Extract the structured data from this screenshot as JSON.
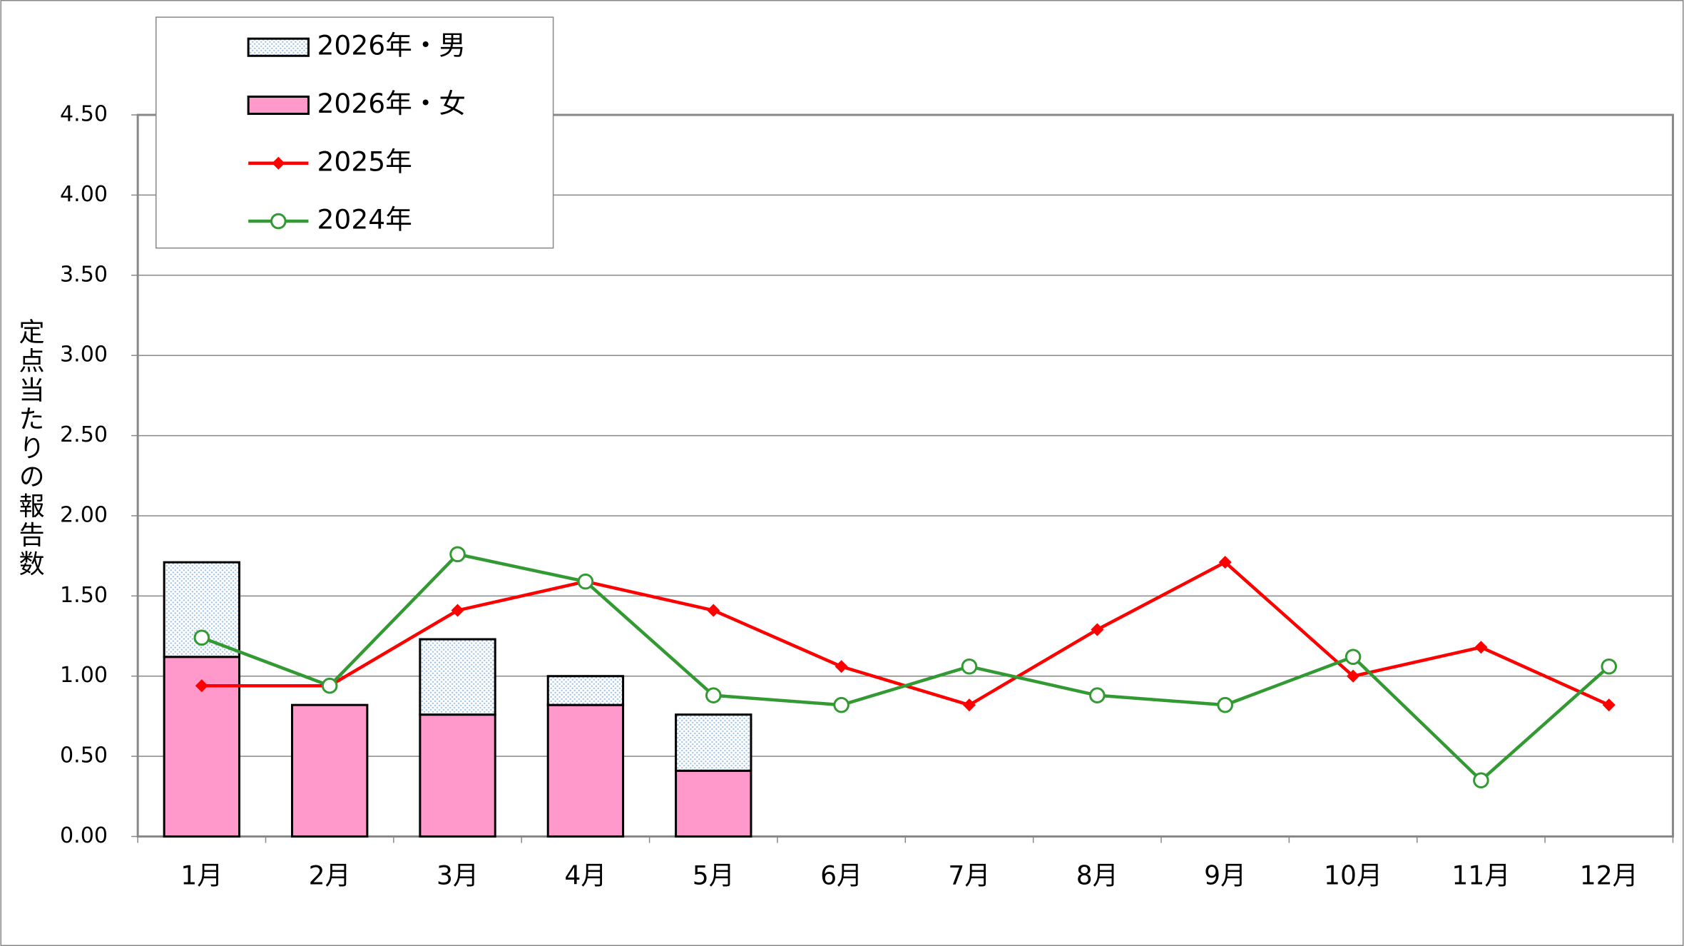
{
  "chart_data": {
    "type": "bar",
    "y_label": "定点当たりの報告数",
    "categories": [
      "1月",
      "2月",
      "3月",
      "4月",
      "5月",
      "6月",
      "7月",
      "8月",
      "9月",
      "10月",
      "11月",
      "12月"
    ],
    "series": [
      {
        "name": "2026年・男",
        "type": "bar",
        "color": "#dde8f5",
        "values": [
          0.59,
          0,
          0.47,
          0.18,
          0.35,
          null,
          null,
          null,
          null,
          null,
          null,
          null
        ]
      },
      {
        "name": "2026年・女",
        "type": "bar",
        "color": "#ff99cc",
        "values": [
          1.12,
          0.82,
          0.76,
          0.82,
          0.41,
          null,
          null,
          null,
          null,
          null,
          null,
          null
        ]
      },
      {
        "name": "2025年",
        "type": "line",
        "color": "#ff0000",
        "marker": "diamond",
        "values": [
          0.94,
          0.94,
          1.41,
          1.59,
          1.41,
          1.06,
          0.82,
          1.29,
          1.71,
          1.0,
          1.18,
          0.82
        ]
      },
      {
        "name": "2024年",
        "type": "line",
        "color": "#339933",
        "marker": "circle-open",
        "values": [
          1.24,
          0.94,
          1.76,
          1.59,
          0.88,
          0.82,
          1.06,
          0.88,
          0.82,
          1.12,
          0.35,
          1.06
        ]
      }
    ],
    "stacked": true,
    "ylim": [
      0,
      4.5
    ],
    "yticks": [
      {
        "value": 0,
        "label": "0.00"
      },
      {
        "value": 0.5,
        "label": "0.50"
      },
      {
        "value": 1,
        "label": "1.00"
      },
      {
        "value": 1.5,
        "label": "1.50"
      },
      {
        "value": 2,
        "label": "2.00"
      },
      {
        "value": 2.5,
        "label": "2.50"
      },
      {
        "value": 3,
        "label": "3.00"
      },
      {
        "value": 3.5,
        "label": "3.50"
      },
      {
        "value": 4,
        "label": "4.00"
      },
      {
        "value": 4.5,
        "label": "4.50"
      }
    ],
    "grid": true
  }
}
